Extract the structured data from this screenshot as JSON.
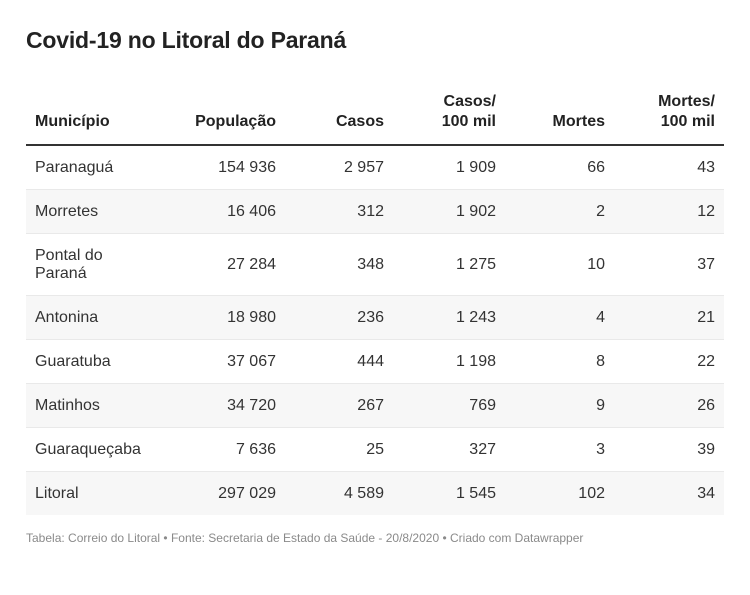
{
  "title": "Covid-19 no Litoral do Paraná",
  "notes": "Tabela: Correio do Litoral • Fonte: Secretaria de Estado da Saúde - 20/8/2020 • Criado com Datawrapper",
  "chart_data": {
    "type": "table",
    "title": "Covid-19 no Litoral do Paraná",
    "columns": [
      "Município",
      "População",
      "Casos",
      "Casos/ 100 mil",
      "Mortes",
      "Mortes/ 100 mil"
    ],
    "rows": [
      [
        "Paranaguá",
        "154 936",
        "2 957",
        "1 909",
        "66",
        "43"
      ],
      [
        "Morretes",
        "16 406",
        "312",
        "1 902",
        "2",
        "12"
      ],
      [
        "Pontal do Paraná",
        "27 284",
        "348",
        "1 275",
        "10",
        "37"
      ],
      [
        "Antonina",
        "18 980",
        "236",
        "1 243",
        "4",
        "21"
      ],
      [
        "Guaratuba",
        "37 067",
        "444",
        "1 198",
        "8",
        "22"
      ],
      [
        "Matinhos",
        "34 720",
        "267",
        "769",
        "9",
        "26"
      ],
      [
        "Guaraqueçaba",
        "7 636",
        "25",
        "327",
        "3",
        "39"
      ],
      [
        "Litoral",
        "297 029",
        "4 589",
        "1 545",
        "102",
        "34"
      ]
    ]
  }
}
